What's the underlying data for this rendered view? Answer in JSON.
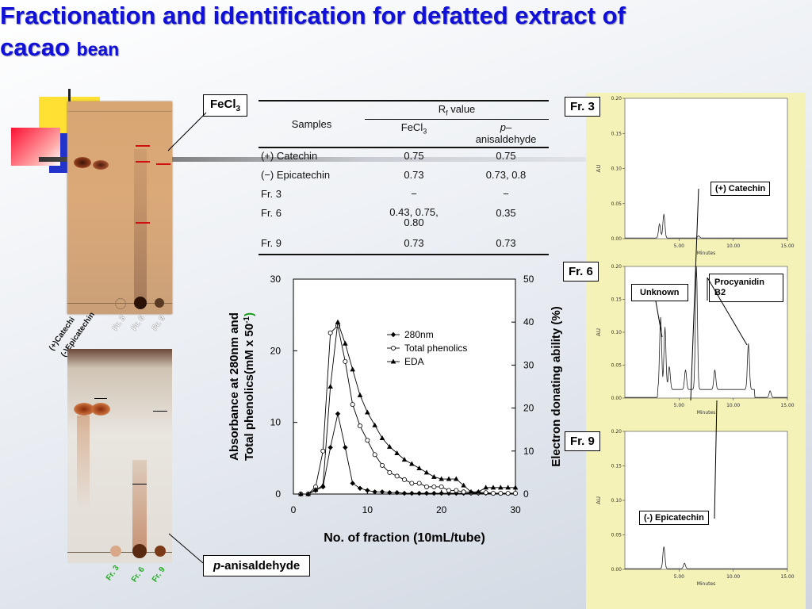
{
  "slide": {
    "title_main": "Fractionation and identification for defatted extract of cacao",
    "title_suffix": "bean"
  },
  "tlc": {
    "fecl3_label": "FeCl",
    "fecl3_sub": "3",
    "anis_prefix": "p",
    "anis_label": "-anisaldehyde",
    "lanes_top": [
      "(+)Catechi",
      "(-)Epicatechin",
      "Fr. 3",
      "Fr. 6",
      "Fr. 9"
    ],
    "lanes_bottom": [
      "Fr. 3",
      "Fr. 6",
      "Fr. 9"
    ]
  },
  "rf_table": {
    "samples_header": "Samples",
    "rf_header": "R",
    "rf_sub": "f",
    "rf_suffix": " value",
    "col_fecl3": "FeCl",
    "col_fecl3_sub": "3",
    "col_p": "p",
    "col_p_suffix": "–",
    "col_anis": "anisaldehyde",
    "rows": [
      {
        "sample": "(+) Catechin",
        "fecl3": "0.75",
        "anis": "0.75"
      },
      {
        "sample": "(−) Epicatechin",
        "fecl3": "0.73",
        "anis": "0.73, 0.8"
      },
      {
        "sample": "Fr. 3",
        "fecl3": "−",
        "anis": "−"
      },
      {
        "sample": "Fr. 6",
        "fecl3": "0.43, 0.75, 0.80",
        "anis": "0.35"
      },
      {
        "sample": "Fr. 9",
        "fecl3": "0.73",
        "anis": "0.73"
      }
    ]
  },
  "chart_data": [
    {
      "type": "line",
      "xlabel": "No. of fraction (10mL/tube)",
      "ylabel_left_line1": "Absorbance at 280nm and",
      "ylabel_left_line2": "Total phenolics(mM x 50",
      "ylabel_left_sup": "-1",
      "ylabel_left_close": ")",
      "ylabel_right": "Electron donating ability (%)",
      "xlim": [
        0,
        30
      ],
      "ylim_left": [
        0,
        30
      ],
      "ylim_right": [
        0,
        50
      ],
      "x_ticks": [
        "0",
        "10",
        "20",
        "30"
      ],
      "y_left_ticks": [
        "0",
        "10",
        "20",
        "30"
      ],
      "y_right_ticks": [
        "0",
        "10",
        "20",
        "30",
        "40",
        "50"
      ],
      "legend_position": "top-right",
      "series": [
        {
          "name": "280nm",
          "axis": "left",
          "marker": "diamond",
          "x": [
            1,
            2,
            3,
            4,
            5,
            6,
            7,
            8,
            9,
            10,
            11,
            12,
            13,
            14,
            15,
            16,
            17,
            18,
            19,
            20,
            21,
            22,
            23,
            24,
            25,
            26,
            27,
            28,
            29,
            30
          ],
          "y": [
            0,
            0,
            0.5,
            1,
            6.5,
            11.2,
            6.5,
            1.5,
            0.8,
            0.5,
            0.3,
            0.3,
            0.2,
            0.2,
            0.1,
            0.1,
            0.1,
            0.1,
            0.1,
            0.1,
            0.1,
            0.1,
            0.1,
            0.1,
            0.1,
            0.1,
            0.1,
            0.1,
            0.1,
            0.1
          ]
        },
        {
          "name": "Total phenolics",
          "axis": "left",
          "marker": "circle",
          "x": [
            1,
            2,
            3,
            4,
            5,
            6,
            7,
            8,
            9,
            10,
            11,
            12,
            13,
            14,
            15,
            16,
            17,
            18,
            19,
            20,
            21,
            22,
            23,
            24,
            25,
            26,
            27,
            28,
            29,
            30
          ],
          "y": [
            0,
            0,
            1,
            6,
            22.5,
            23.5,
            18.5,
            12.5,
            9.5,
            7.5,
            5.5,
            4,
            3,
            2.5,
            2,
            1.5,
            1.5,
            1,
            1,
            1,
            0.5,
            0.5,
            0.3,
            0.2,
            0.2,
            0.2,
            0.1,
            0.1,
            0.1,
            0.1
          ]
        },
        {
          "name": "EDA",
          "axis": "right",
          "marker": "triangle",
          "x": [
            1,
            2,
            3,
            4,
            5,
            6,
            7,
            8,
            9,
            10,
            11,
            12,
            13,
            14,
            15,
            16,
            17,
            18,
            19,
            20,
            21,
            22,
            23,
            24,
            25,
            26,
            27,
            28,
            29,
            30
          ],
          "y": [
            0,
            0,
            1,
            2,
            25,
            40,
            35,
            29,
            23,
            19,
            16,
            13,
            11,
            9.5,
            8,
            7,
            6,
            5,
            4,
            3.5,
            3.5,
            3.5,
            2,
            0.5,
            0.5,
            1.5,
            1.5,
            1.5,
            1.5,
            1.5
          ]
        }
      ]
    },
    {
      "type": "line",
      "title": "Fr. 3",
      "xlabel": "Minutes",
      "ylabel": "AU",
      "xlim": [
        0,
        15
      ],
      "ylim": [
        0,
        0.2
      ],
      "x_ticks": [
        "5.00",
        "10.00",
        "15.00"
      ],
      "y_ticks": [
        "0.00",
        "0.05",
        "0.10",
        "0.15",
        "0.20"
      ],
      "peaks_min": [
        3.2,
        3.6,
        6.8
      ],
      "peaks_au": [
        0.02,
        0.034,
        0.003
      ],
      "annotations": [
        "(+) Catechin"
      ]
    },
    {
      "type": "line",
      "title": "Fr. 6",
      "xlabel": "Minutes",
      "ylabel": "AU",
      "xlim": [
        0,
        15
      ],
      "ylim": [
        0,
        0.2
      ],
      "x_ticks": [
        "5.00",
        "10.00",
        "15.00"
      ],
      "y_ticks": [
        "0.00",
        "0.05",
        "0.10",
        "0.15",
        "0.20"
      ],
      "peaks_min": [
        3.3,
        3.7,
        4.1,
        5.6,
        6.6,
        8.3,
        11.4,
        13.4
      ],
      "peaks_au": [
        0.11,
        0.095,
        0.035,
        0.03,
        0.19,
        0.03,
        0.07,
        0.01
      ],
      "annotations": [
        "Unknown",
        "Procyanidin B2"
      ]
    },
    {
      "type": "line",
      "title": "Fr. 9",
      "xlabel": "Minutes",
      "ylabel": "AU",
      "xlim": [
        0,
        15
      ],
      "ylim": [
        0,
        0.2
      ],
      "x_ticks": [
        "5.00",
        "10.00",
        "15.00"
      ],
      "y_ticks": [
        "0.00",
        "0.05",
        "0.10",
        "0.15",
        "0.20"
      ],
      "peaks_min": [
        3.6,
        5.5
      ],
      "peaks_au": [
        0.032,
        0.008
      ],
      "annotations": [
        "(-) Epicatechin"
      ]
    }
  ]
}
